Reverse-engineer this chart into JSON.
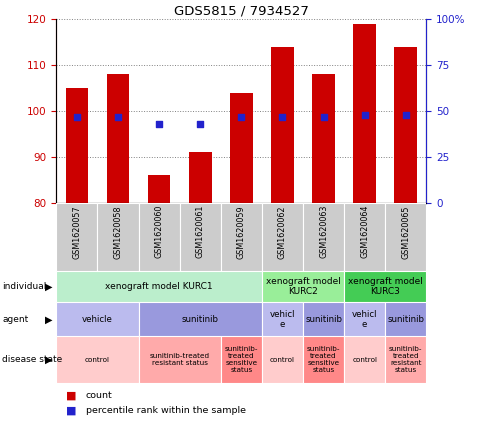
{
  "title": "GDS5815 / 7934527",
  "samples": [
    "GSM1620057",
    "GSM1620058",
    "GSM1620060",
    "GSM1620061",
    "GSM1620059",
    "GSM1620062",
    "GSM1620063",
    "GSM1620064",
    "GSM1620065"
  ],
  "counts": [
    105,
    108,
    86,
    91,
    104,
    114,
    108,
    119,
    114
  ],
  "percentiles": [
    47,
    47,
    43,
    43,
    47,
    47,
    47,
    48,
    48
  ],
  "ylim_left": [
    80,
    120
  ],
  "ylim_right": [
    0,
    100
  ],
  "yticks_left": [
    80,
    90,
    100,
    110,
    120
  ],
  "yticks_right": [
    0,
    25,
    50,
    75,
    100
  ],
  "bar_color": "#cc0000",
  "dot_color": "#2222cc",
  "individual_groups": [
    {
      "label": "xenograft model KURC1",
      "start": 0,
      "end": 5,
      "color": "#bbeecc"
    },
    {
      "label": "xenograft model\nKURC2",
      "start": 5,
      "end": 7,
      "color": "#99ee99"
    },
    {
      "label": "xenograft model\nKURC3",
      "start": 7,
      "end": 9,
      "color": "#44cc55"
    }
  ],
  "agent_groups": [
    {
      "label": "vehicle",
      "start": 0,
      "end": 2,
      "color": "#bbbbee"
    },
    {
      "label": "sunitinib",
      "start": 2,
      "end": 5,
      "color": "#9999dd"
    },
    {
      "label": "vehicl\ne",
      "start": 5,
      "end": 6,
      "color": "#bbbbee"
    },
    {
      "label": "sunitinib",
      "start": 6,
      "end": 7,
      "color": "#9999dd"
    },
    {
      "label": "vehicl\ne",
      "start": 7,
      "end": 8,
      "color": "#bbbbee"
    },
    {
      "label": "sunitinib",
      "start": 8,
      "end": 9,
      "color": "#9999dd"
    }
  ],
  "disease_groups": [
    {
      "label": "control",
      "start": 0,
      "end": 2,
      "color": "#ffcccc"
    },
    {
      "label": "sunitinib-treated\nresistant status",
      "start": 2,
      "end": 4,
      "color": "#ffaaaa"
    },
    {
      "label": "sunitinib-\ntreated\nsensitive\nstatus",
      "start": 4,
      "end": 5,
      "color": "#ff8888"
    },
    {
      "label": "control",
      "start": 5,
      "end": 6,
      "color": "#ffcccc"
    },
    {
      "label": "sunitinib-\ntreated\nsensitive\nstatus",
      "start": 6,
      "end": 7,
      "color": "#ff8888"
    },
    {
      "label": "control",
      "start": 7,
      "end": 8,
      "color": "#ffcccc"
    },
    {
      "label": "sunitinib-\ntreated\nresistant\nstatus",
      "start": 8,
      "end": 9,
      "color": "#ffaaaa"
    }
  ],
  "row_labels": [
    "individual",
    "agent",
    "disease state"
  ],
  "legend_count_color": "#cc0000",
  "legend_perc_color": "#2222cc",
  "sample_bg_color": "#cccccc",
  "sample_label_color": "#000000",
  "left_axis_color": "#cc0000",
  "right_axis_color": "#2222cc"
}
